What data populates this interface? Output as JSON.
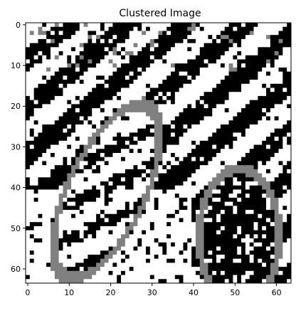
{
  "chart_data": {
    "type": "heatmap",
    "title": "Clustered Image",
    "xlabel": "",
    "ylabel": "",
    "xlim": [
      -0.5,
      63.5
    ],
    "ylim": [
      63.5,
      -0.5
    ],
    "grid": false,
    "xticks": [
      0,
      10,
      20,
      30,
      40,
      50,
      60
    ],
    "yticks": [
      0,
      10,
      20,
      30,
      40,
      50,
      60
    ],
    "grid_size": [
      64,
      64
    ],
    "colors": {
      "0": "#000000",
      "1": "#808080",
      "2": "#ffffff"
    },
    "seed": 7
  }
}
